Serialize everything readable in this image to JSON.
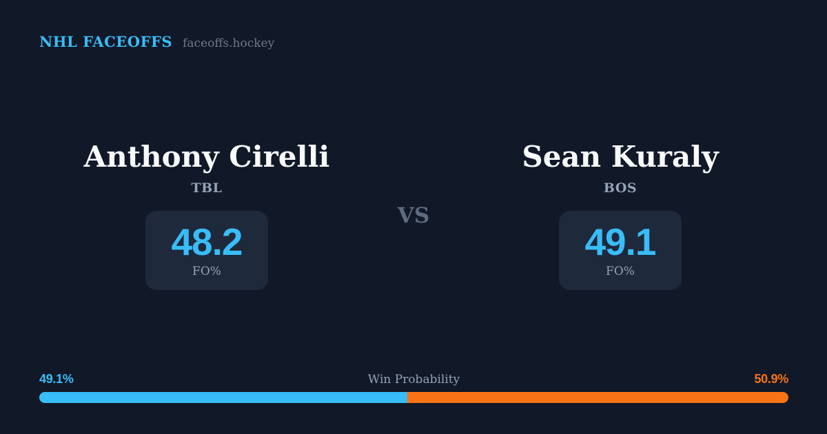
{
  "theme": {
    "background": "#111827",
    "card_bg": "#1e293b",
    "accent_blue": "#38bdf8",
    "accent_orange": "#f97316",
    "text_primary": "#f8fafc",
    "text_muted": "#94a3b8",
    "text_dim": "#5d6b80",
    "text_domain": "#6f7a8b"
  },
  "header": {
    "brand": "NHL FACEOFFS",
    "domain": "faceoffs.hockey"
  },
  "matchup": {
    "vs_label": "VS",
    "players": [
      {
        "name": "Anthony Cirelli",
        "team": "TBL",
        "fo_pct": "48.2",
        "stat_label": "FO%"
      },
      {
        "name": "Sean Kuraly",
        "team": "BOS",
        "fo_pct": "49.1",
        "stat_label": "FO%"
      }
    ]
  },
  "win_probability": {
    "title": "Win Probability",
    "left_pct_label": "49.1%",
    "right_pct_label": "50.9%",
    "left_value": 49.1,
    "right_value": 50.9
  }
}
